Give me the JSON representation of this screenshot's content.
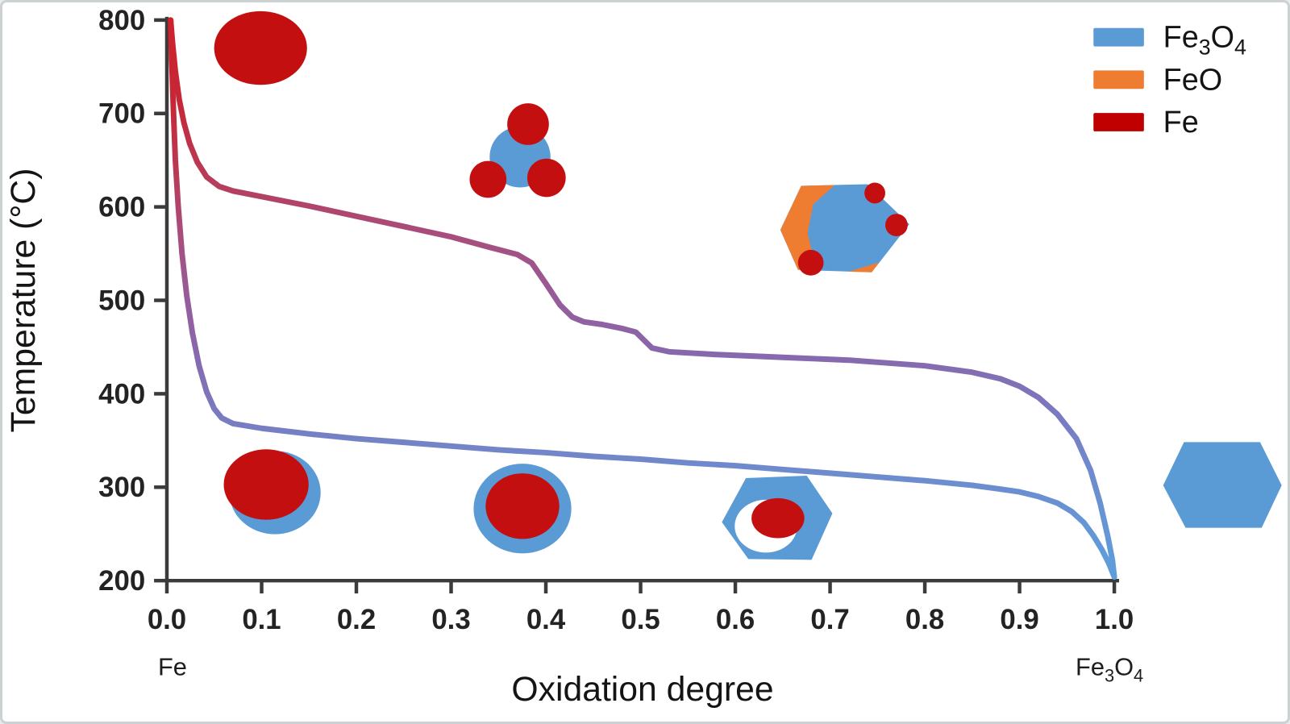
{
  "colors": {
    "background": "#ffffff",
    "axis": "#3b3b3b",
    "text": "#1d1d1d",
    "fe3o4": "#5b9bd5",
    "feo": "#ee7d31",
    "fe_legend": "#c00000",
    "fe_particle": "#c40f11",
    "curve_gradient": [
      [
        "0%",
        "#d0202b"
      ],
      [
        "15%",
        "#c62737"
      ],
      [
        "28%",
        "#b93a55"
      ],
      [
        "40%",
        "#a74e7e"
      ],
      [
        "52%",
        "#955d9b"
      ],
      [
        "62%",
        "#8669ae"
      ],
      [
        "72%",
        "#7b79bf"
      ],
      [
        "83%",
        "#6e8bcd"
      ],
      [
        "100%",
        "#5f9cda"
      ]
    ]
  },
  "y_axis": {
    "label": "Temperature (°C)",
    "ticks": [
      200,
      300,
      400,
      500,
      600,
      700,
      800
    ],
    "range": [
      200,
      800
    ]
  },
  "x_axis": {
    "label": "Oxidation degree",
    "tick_labels": [
      "0.0",
      "0.1",
      "0.2",
      "0.3",
      "0.4",
      "0.5",
      "0.6",
      "0.7",
      "0.8",
      "0.9",
      "1.0"
    ],
    "tick_values": [
      0,
      0.1,
      0.2,
      0.3,
      0.4,
      0.5,
      0.6,
      0.7,
      0.8,
      0.9,
      1.0
    ],
    "range": [
      0,
      1
    ],
    "start_annotation": "Fe",
    "end_annotation_parts": [
      [
        "Fe",
        0
      ],
      [
        "3",
        1
      ],
      [
        "O",
        0
      ],
      [
        "4",
        1
      ]
    ]
  },
  "legend": {
    "entries": [
      {
        "parts": [
          [
            "Fe",
            0
          ],
          [
            "3",
            1
          ],
          [
            "O",
            0
          ],
          [
            "4",
            1
          ]
        ],
        "plain_label": "Fe3O4",
        "color_key": "fe3o4"
      },
      {
        "parts": [
          [
            "FeO",
            0
          ]
        ],
        "plain_label": "FeO",
        "color_key": "feo"
      },
      {
        "parts": [
          [
            "Fe",
            0
          ]
        ],
        "plain_label": "Fe",
        "color_key": "fe_legend"
      }
    ]
  },
  "chart_data": {
    "type": "line",
    "title": "",
    "xlabel": "Oxidation degree",
    "ylabel": "Temperature (°C)",
    "xlim": [
      0,
      1
    ],
    "ylim": [
      200,
      800
    ],
    "x_ticks": [
      0,
      0.1,
      0.2,
      0.3,
      0.4,
      0.5,
      0.6,
      0.7,
      0.8,
      0.9,
      1.0
    ],
    "y_ticks": [
      200,
      300,
      400,
      500,
      600,
      700,
      800
    ],
    "grid": false,
    "legend_position": "upper right",
    "legend_entries": [
      "Fe3O4",
      "FeO",
      "Fe"
    ],
    "color_encoding": "curve color encodes temperature: red (Fe, high T) grading to blue (Fe3O4, low T)",
    "series": [
      {
        "name": "upper-oxidation-curve",
        "points": [
          [
            0.004,
            800
          ],
          [
            0.006,
            775
          ],
          [
            0.009,
            745
          ],
          [
            0.013,
            715
          ],
          [
            0.018,
            690
          ],
          [
            0.024,
            668
          ],
          [
            0.032,
            648
          ],
          [
            0.042,
            632
          ],
          [
            0.055,
            622
          ],
          [
            0.07,
            617
          ],
          [
            0.1,
            611
          ],
          [
            0.15,
            601
          ],
          [
            0.2,
            590
          ],
          [
            0.25,
            579
          ],
          [
            0.3,
            568
          ],
          [
            0.34,
            557
          ],
          [
            0.37,
            549
          ],
          [
            0.385,
            540
          ],
          [
            0.4,
            518
          ],
          [
            0.415,
            495
          ],
          [
            0.428,
            482
          ],
          [
            0.44,
            477
          ],
          [
            0.46,
            474
          ],
          [
            0.48,
            470
          ],
          [
            0.495,
            466
          ],
          [
            0.503,
            458
          ],
          [
            0.512,
            449
          ],
          [
            0.53,
            445
          ],
          [
            0.58,
            442
          ],
          [
            0.65,
            439
          ],
          [
            0.72,
            436
          ],
          [
            0.8,
            430
          ],
          [
            0.85,
            423
          ],
          [
            0.88,
            416
          ],
          [
            0.9,
            408
          ],
          [
            0.92,
            396
          ],
          [
            0.94,
            378
          ],
          [
            0.96,
            352
          ],
          [
            0.975,
            318
          ],
          [
            0.985,
            283
          ],
          [
            0.993,
            248
          ],
          [
            0.998,
            222
          ],
          [
            1.0,
            204
          ]
        ]
      },
      {
        "name": "lower-oxidation-curve",
        "points": [
          [
            0.004,
            800
          ],
          [
            0.005,
            760
          ],
          [
            0.007,
            700
          ],
          [
            0.009,
            650
          ],
          [
            0.012,
            600
          ],
          [
            0.016,
            550
          ],
          [
            0.021,
            505
          ],
          [
            0.027,
            465
          ],
          [
            0.034,
            430
          ],
          [
            0.042,
            402
          ],
          [
            0.05,
            384
          ],
          [
            0.058,
            374
          ],
          [
            0.07,
            368
          ],
          [
            0.1,
            363
          ],
          [
            0.15,
            357
          ],
          [
            0.2,
            352
          ],
          [
            0.25,
            348
          ],
          [
            0.3,
            344
          ],
          [
            0.35,
            340
          ],
          [
            0.4,
            337
          ],
          [
            0.45,
            333
          ],
          [
            0.5,
            330
          ],
          [
            0.55,
            326
          ],
          [
            0.6,
            323
          ],
          [
            0.65,
            319
          ],
          [
            0.7,
            315
          ],
          [
            0.75,
            311
          ],
          [
            0.8,
            307
          ],
          [
            0.85,
            302
          ],
          [
            0.88,
            298
          ],
          [
            0.9,
            295
          ],
          [
            0.92,
            290
          ],
          [
            0.94,
            283
          ],
          [
            0.955,
            274
          ],
          [
            0.968,
            262
          ],
          [
            0.978,
            248
          ],
          [
            0.987,
            233
          ],
          [
            0.994,
            219
          ],
          [
            1.0,
            204
          ]
        ]
      }
    ],
    "annotations": [
      {
        "kind": "particle-fe-solid",
        "x": 0.1,
        "temperature": 780,
        "description": "solid Fe particle (red ellipse)"
      },
      {
        "kind": "particle-fe3o4-nucleation",
        "x": 0.375,
        "temperature": 655,
        "description": "blue Fe3O4 core with three red Fe particles attached"
      },
      {
        "kind": "particle-feo-fe3o4-fe",
        "x": 0.72,
        "temperature": 577,
        "description": "hexagonal grain: orange FeO region, blue Fe3O4 body, small red Fe dots"
      },
      {
        "kind": "particle-fe-core-thin-shell",
        "x": 0.115,
        "temperature": 297,
        "description": "red Fe core with thin blue Fe3O4 shell offset below-right"
      },
      {
        "kind": "particle-fe-core-shell",
        "x": 0.375,
        "temperature": 278,
        "description": "red Fe core fully surrounded by blue Fe3O4 shell"
      },
      {
        "kind": "particle-hollow-core-shell",
        "x": 0.645,
        "temperature": 266,
        "description": "blue Fe3O4 hexagonal shell with white void and shrinking red Fe core"
      },
      {
        "kind": "particle-fe3o4-hexagon",
        "x": 1.13,
        "temperature": 302,
        "description": "fully oxidized solid blue Fe3O4 hexagonal particle"
      }
    ]
  }
}
